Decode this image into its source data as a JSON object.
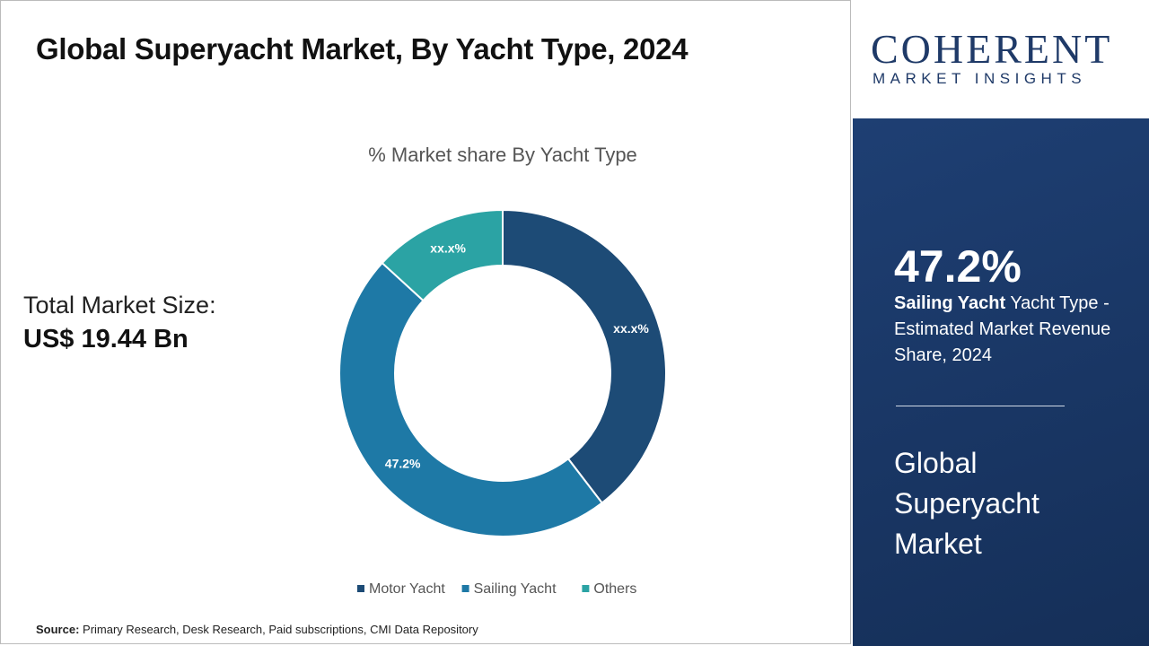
{
  "header": {
    "title": "Global Superyacht Market, By Yacht Type, 2024"
  },
  "market_size": {
    "label": "Total Market Size:",
    "value": "US$ 19.44 Bn"
  },
  "chart_data": {
    "type": "pie",
    "title": "% Market share By Yacht Type",
    "categories": [
      "Motor Yacht",
      "Sailing Yacht",
      "Others"
    ],
    "values": [
      39.6,
      47.2,
      13.2
    ],
    "value_labels": [
      "xx.x%",
      "47.2%",
      "xx.x%"
    ],
    "colors": [
      "#1d4b76",
      "#1e79a6",
      "#2ba3a4"
    ],
    "legend": "bottom"
  },
  "source": {
    "label": "Source:",
    "text": "Primary Research, Desk Research, Paid subscriptions, CMI Data Repository"
  },
  "logo": {
    "name": "COHERENT",
    "tagline": "MARKET INSIGHTS"
  },
  "side_panel": {
    "highlight": "47.2%",
    "segment": "Sailing Yacht",
    "description": " Yacht Type - Estimated Market Revenue Share, 2024",
    "market": "Global Superyacht Market"
  }
}
